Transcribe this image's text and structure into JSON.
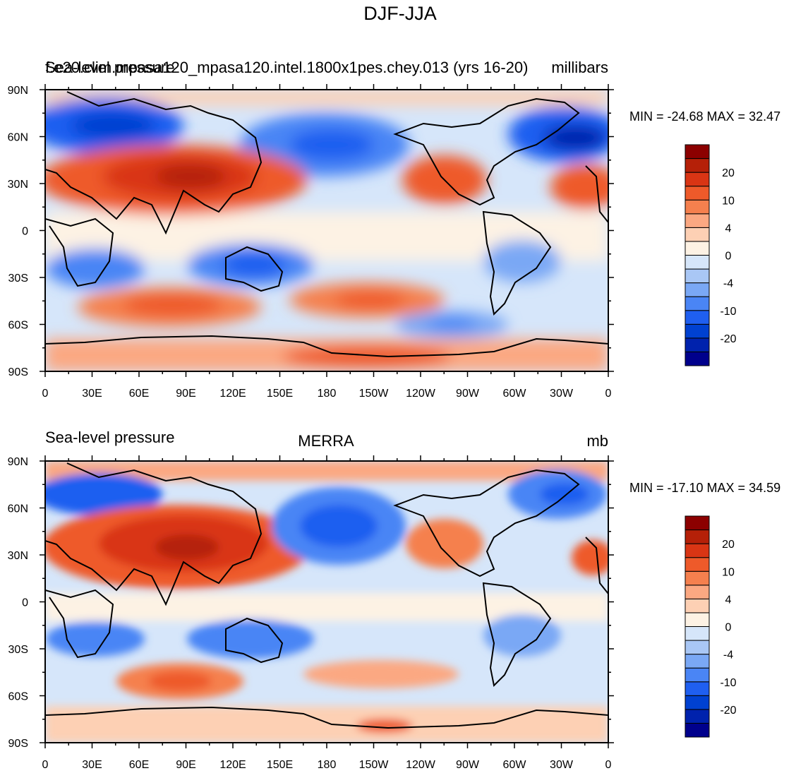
{
  "page": {
    "title": "DJF-JJA"
  },
  "colors": {
    "colorbar": [
      "#00008c",
      "#0022ad",
      "#0041d1",
      "#1f5ff0",
      "#4a85f5",
      "#7aa8f5",
      "#a9c7f5",
      "#d6e6fa",
      "#fdf2e4",
      "#fdd0b4",
      "#fba882",
      "#f5804e",
      "#ee5a2a",
      "#d93514",
      "#b52008",
      "#8c0000"
    ],
    "land_outline": "#000000"
  },
  "axes": {
    "lat_labels": [
      "90N",
      "60N",
      "30N",
      "0",
      "30S",
      "60S",
      "90S"
    ],
    "lon_labels": [
      "0",
      "30E",
      "60E",
      "90E",
      "120E",
      "150E",
      "180",
      "150W",
      "120W",
      "90W",
      "60W",
      "30W",
      "0"
    ]
  },
  "panels": [
    {
      "left_title": "Sea-level pressure",
      "overlap_title": "f.e20.clim.mpasa120_mpasa120.intel.1800x1pes.chey.013 (yrs 16-20)",
      "center_title": "",
      "units": "millibars",
      "stats": "MIN = -24.68 MAX =  32.47",
      "colorbar_labels": [
        "20",
        "10",
        "4",
        "0",
        "-4",
        "-10",
        "-20"
      ]
    },
    {
      "left_title": "Sea-level pressure",
      "overlap_title": "",
      "center_title": "MERRA",
      "units": "mb",
      "stats": "MIN = -17.10 MAX =  34.59",
      "colorbar_labels": [
        "20",
        "10",
        "4",
        "0",
        "-4",
        "-10",
        "-20"
      ]
    }
  ]
}
